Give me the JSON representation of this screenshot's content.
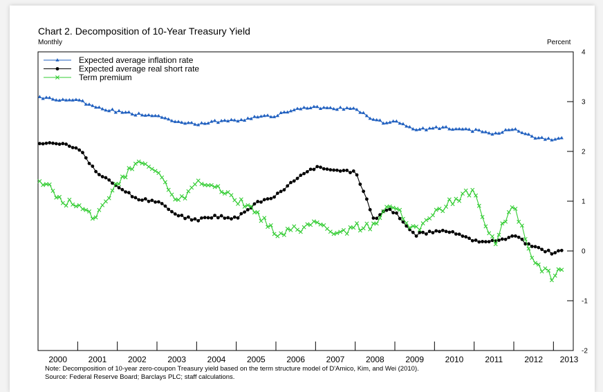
{
  "title": "Chart 2. Decomposition of 10-Year Treasury Yield",
  "frequency_label": "Monthly",
  "unit_label": "Percent",
  "note_text": "Note:  Decomposition of 10-year zero-coupon Treasury yield based on the term structure model of D'Amico, Kim, and Wei (2010).",
  "source_text": "Source:  Federal Reserve Board; Barclays PLC; staff calculations.",
  "chart_data": {
    "type": "line",
    "title": "Chart 2. Decomposition of 10-Year Treasury Yield",
    "xlabel": "",
    "ylabel": "Percent",
    "xlim": [
      1999.5,
      2013.0
    ],
    "ylim": [
      -2,
      4
    ],
    "x_tick_labels": [
      "2000",
      "2001",
      "2002",
      "2003",
      "2004",
      "2005",
      "2006",
      "2007",
      "2008",
      "2009",
      "2010",
      "2011",
      "2012",
      "2013"
    ],
    "y_ticks": [
      -2,
      -1,
      0,
      1,
      2,
      3,
      4
    ],
    "y_tick_labels": [
      "-2",
      "-1",
      "0",
      "1",
      "2",
      "3",
      "4"
    ],
    "y_axis_side": "right",
    "legend_position": "top-left",
    "grid": false,
    "x_knots": [
      1999.5,
      2000.0,
      2000.5,
      2001.0,
      2001.5,
      2002.0,
      2002.5,
      2003.0,
      2003.5,
      2004.0,
      2004.5,
      2005.0,
      2005.5,
      2006.0,
      2006.5,
      2007.0,
      2007.5,
      2008.0,
      2008.25,
      2008.5,
      2009.0,
      2009.5,
      2010.0,
      2010.5,
      2011.0,
      2011.5,
      2012.0,
      2012.5,
      2012.75
    ],
    "series": [
      {
        "name": "Expected average inflation rate",
        "color": "#1f5fbf",
        "marker": "triangle",
        "values": [
          3.08,
          3.04,
          3.03,
          2.88,
          2.8,
          2.74,
          2.72,
          2.58,
          2.55,
          2.6,
          2.62,
          2.68,
          2.72,
          2.85,
          2.88,
          2.86,
          2.86,
          2.62,
          2.58,
          2.62,
          2.42,
          2.48,
          2.46,
          2.42,
          2.36,
          2.44,
          2.28,
          2.24,
          2.26
        ]
      },
      {
        "name": "Expected average real short rate",
        "color": "#000000",
        "marker": "circle",
        "values": [
          2.15,
          2.15,
          2.08,
          1.55,
          1.3,
          1.05,
          1.0,
          0.72,
          0.62,
          0.7,
          0.65,
          0.96,
          1.12,
          1.45,
          1.68,
          1.6,
          1.6,
          0.6,
          0.85,
          0.78,
          0.32,
          0.4,
          0.36,
          0.2,
          0.18,
          0.3,
          0.08,
          -0.05,
          0.02
        ]
      },
      {
        "name": "Term premium",
        "color": "#33cc33",
        "marker": "x",
        "values": [
          1.48,
          1.1,
          0.85,
          0.7,
          1.35,
          1.78,
          1.65,
          0.95,
          1.35,
          1.25,
          1.0,
          0.8,
          0.35,
          0.42,
          0.55,
          0.35,
          0.48,
          0.5,
          0.8,
          0.88,
          0.4,
          0.75,
          1.05,
          1.18,
          0.15,
          0.95,
          -0.25,
          -0.55,
          -0.28
        ]
      }
    ]
  }
}
